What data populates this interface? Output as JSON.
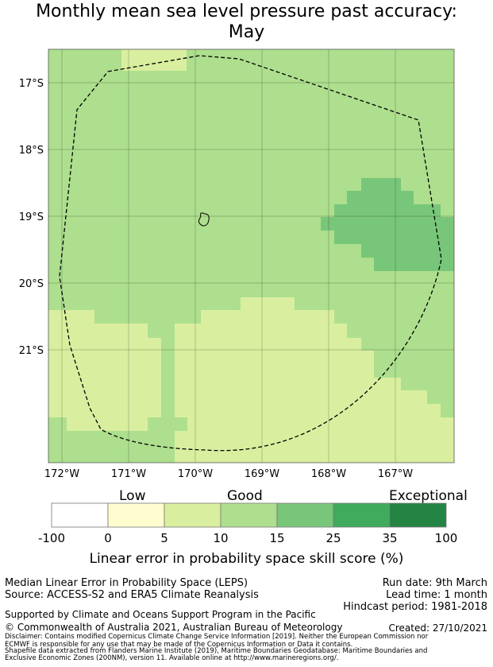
{
  "title": {
    "line1": "Monthly mean sea level pressure past accuracy:",
    "line2": "May"
  },
  "map": {
    "lat_labels": [
      "17°S",
      "18°S",
      "19°S",
      "20°S",
      "21°S"
    ],
    "lon_labels": [
      "172°W",
      "171°W",
      "170°W",
      "169°W",
      "168°W",
      "167°W"
    ],
    "colors": {
      "c0": "#fffdd0",
      "c1": "#d9ef9f",
      "c2": "#addf8e",
      "c3": "#78c679"
    }
  },
  "colorbar": {
    "categories": [
      "Low",
      "Good",
      "Exceptional"
    ],
    "ticks": [
      "-100",
      "0",
      "5",
      "10",
      "15",
      "25",
      "35",
      "100"
    ],
    "colors": [
      "#ffffff",
      "#fffdd0",
      "#d9ef9f",
      "#addf8e",
      "#78c679",
      "#41ab5d",
      "#238443"
    ],
    "label": "Linear error in probability space skill score (%)"
  },
  "footer": {
    "left1": "Median Linear Error in Probability Space (LEPS)",
    "left2": "Source: ACCESS-S2 and ERA5 Climate Reanalysis",
    "right1": "Run date: 9th March",
    "right2": "Lead time: 1 month",
    "right3": "Hindcast period: 1981-2018",
    "supported": "Supported by Climate and Oceans Support Program in the Pacific",
    "copyright": "© Commonwealth of Australia 2021, Australian Bureau of Meteorology",
    "created": "Created: 27/10/2021",
    "disclaimer1": "Disclaimer: Contains modified Copernicus Climate Change Service Information [2019]. Neither the European Commission nor",
    "disclaimer2": "ECMWF is responsible for any use that may be made of the Copernicus Information or Data it contains.",
    "shapefile1": "Shapefile data extracted from Flanders Marine Institute (2019), Maritime Boundaries Geodatabase: Maritime Boundaries and",
    "shapefile2": "Exclusive Economic Zones (200NM), version 11. Available online at http://www.marineregions.org/."
  }
}
